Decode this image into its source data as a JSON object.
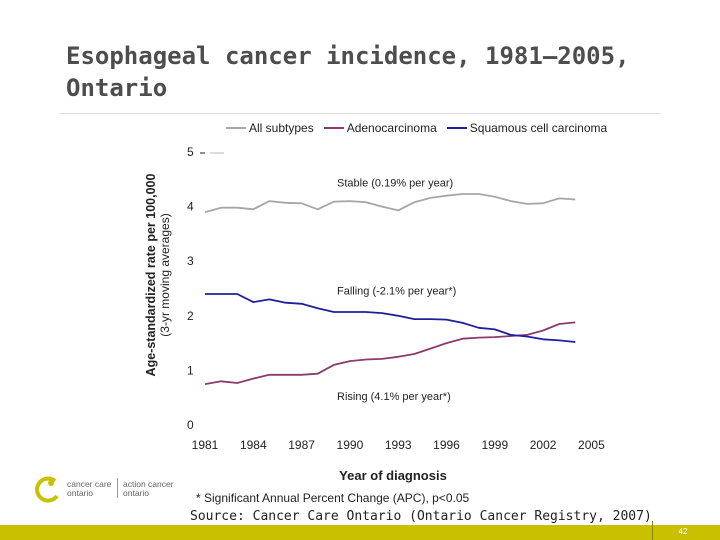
{
  "slide": {
    "title": "Esophageal cancer incidence, 1981–2005, Ontario",
    "footnote": "* Significant Annual Percent Change (APC), p<0.05",
    "source": "Source: Cancer Care Ontario (Ontario Cancer Registry, 2007)",
    "page_number": "42",
    "bar_color": "#c9c000"
  },
  "logo": {
    "left_line1": "cancer care",
    "left_line2": "ontario",
    "right_line1": "action cancer",
    "right_line2": "ontario"
  },
  "chart_data": {
    "type": "line",
    "xlabel": "Year of diagnosis",
    "ylabel": "Age-standardized rate per 100,000",
    "ylabel_sub": "(3-yr moving averages)",
    "x": [
      1981,
      1982,
      1983,
      1984,
      1985,
      1986,
      1987,
      1988,
      1989,
      1990,
      1991,
      1992,
      1993,
      1994,
      1995,
      1996,
      1997,
      1998,
      1999,
      2000,
      2001,
      2002,
      2003,
      2004
    ],
    "xlim": [
      1980,
      2005
    ],
    "x_ticks": [
      1981,
      1984,
      1987,
      1990,
      1993,
      1996,
      1999,
      2002,
      2005
    ],
    "ylim": [
      0,
      5
    ],
    "y_ticks": [
      0,
      1,
      2,
      3,
      4,
      5
    ],
    "grid": false,
    "legend_position": "top",
    "series": [
      {
        "name": "All subtypes",
        "color": "#a6a6a6",
        "values": [
          3.9,
          3.98,
          3.98,
          3.95,
          4.1,
          4.07,
          4.06,
          3.95,
          4.09,
          4.1,
          4.08,
          4.0,
          3.93,
          4.08,
          4.16,
          4.2,
          4.23,
          4.23,
          4.18,
          4.1,
          4.05,
          4.06,
          4.15,
          4.13
        ]
      },
      {
        "name": "Adenocarcinoma",
        "color": "#8c3a6b",
        "values": [
          0.75,
          0.8,
          0.77,
          0.85,
          0.92,
          0.92,
          0.92,
          0.94,
          1.1,
          1.17,
          1.2,
          1.21,
          1.25,
          1.3,
          1.4,
          1.5,
          1.58,
          1.6,
          1.61,
          1.63,
          1.65,
          1.73,
          1.85,
          1.88
        ]
      },
      {
        "name": "Squamous cell carcinoma",
        "color": "#1f1f9e",
        "values": [
          2.4,
          2.4,
          2.4,
          2.25,
          2.3,
          2.24,
          2.22,
          2.14,
          2.07,
          2.07,
          2.07,
          2.05,
          2.0,
          1.94,
          1.94,
          1.93,
          1.87,
          1.78,
          1.75,
          1.65,
          1.62,
          1.57,
          1.55,
          1.52
        ]
      }
    ],
    "annotations": [
      {
        "text": "Stable (0.19% per year)",
        "x": 1989.2,
        "y": 4.37
      },
      {
        "text": "Falling (-2.1% per year*)",
        "x": 1989.2,
        "y": 2.39
      },
      {
        "text": "Rising (4.1% per year*)",
        "x": 1989.2,
        "y": 0.46
      }
    ]
  }
}
